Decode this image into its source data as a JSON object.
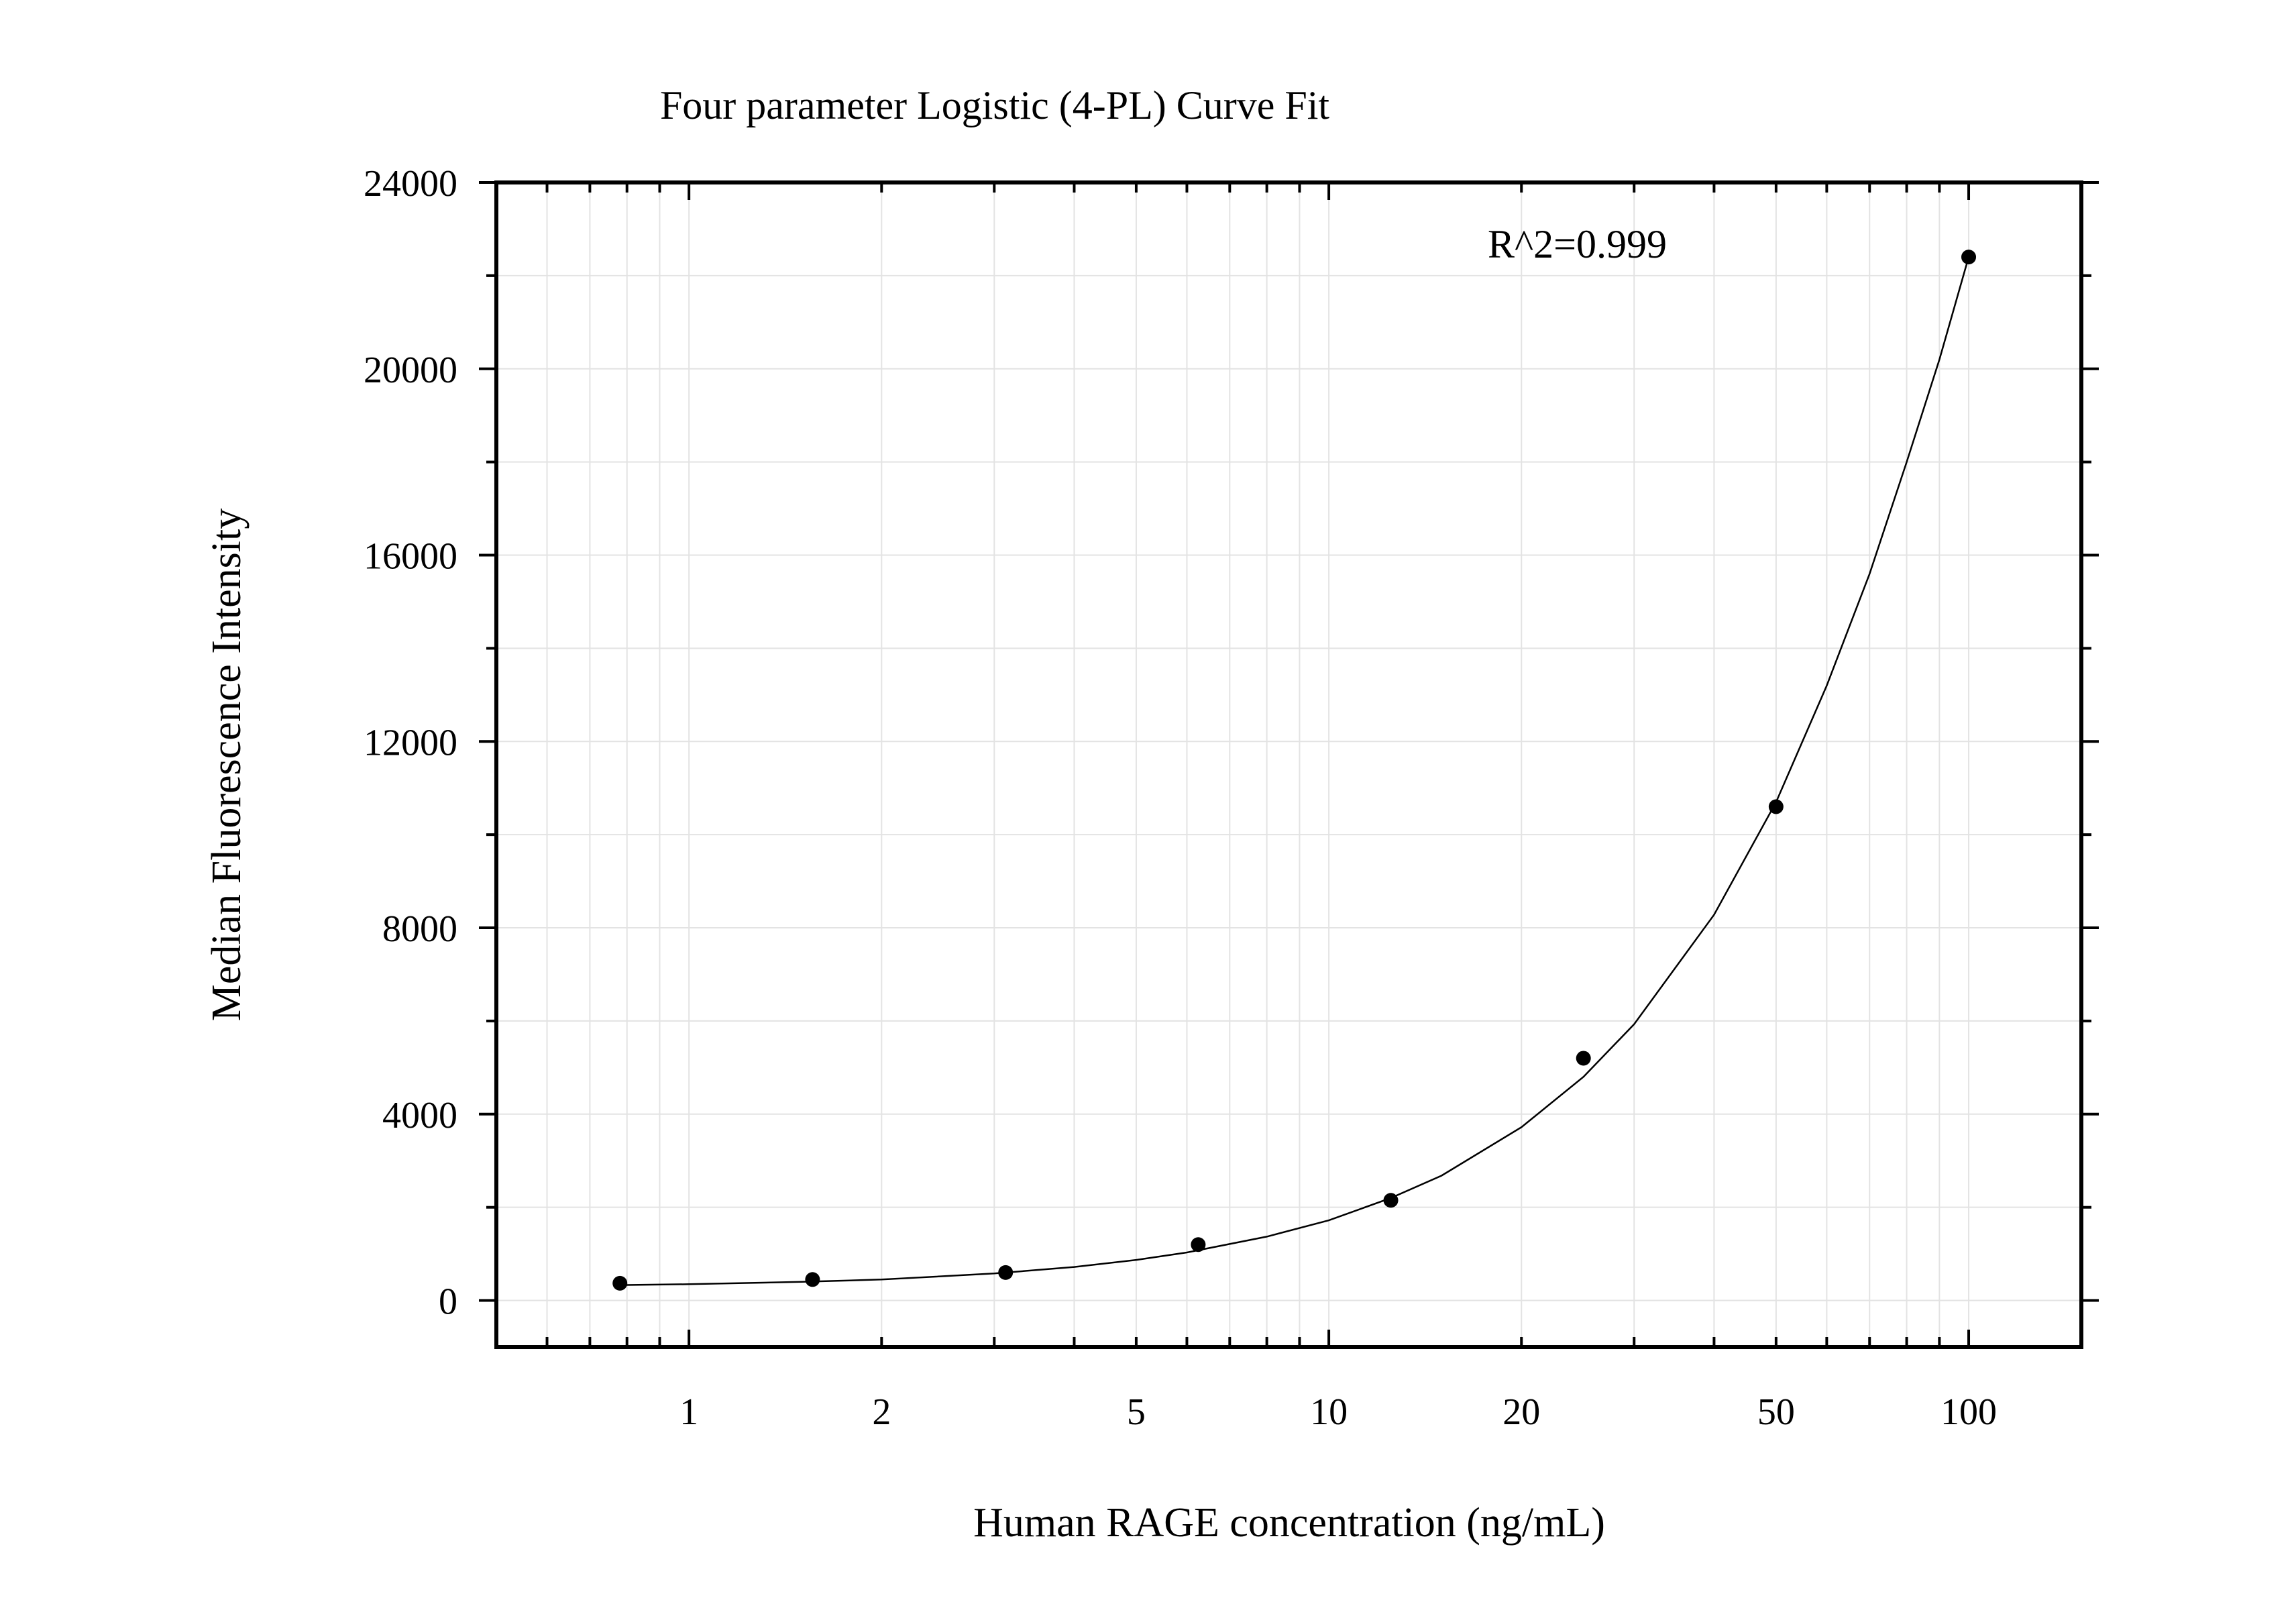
{
  "chart_data": {
    "type": "scatter",
    "title": "Four parameter Logistic (4-PL) Curve Fit",
    "xlabel": "Human RAGE concentration (ng/mL)",
    "ylabel": "Median Fluorescence Intensity",
    "x_scale": "log",
    "xlim": [
      0.5,
      150
    ],
    "ylim": [
      -1000,
      24000
    ],
    "x_ticks": [
      1,
      2,
      5,
      10,
      20,
      50,
      100
    ],
    "y_ticks": [
      0,
      4000,
      8000,
      12000,
      16000,
      20000,
      24000
    ],
    "grid": true,
    "legend": "none",
    "annotation": "R^2=0.999",
    "points": {
      "x": [
        0.78,
        1.56,
        3.125,
        6.25,
        12.5,
        25,
        50,
        100
      ],
      "y": [
        370,
        450,
        600,
        1200,
        2150,
        5200,
        10600,
        22400
      ]
    },
    "fit": {
      "model": "4-PL",
      "x": [
        0.78,
        1,
        1.5,
        2,
        3,
        4,
        5,
        6,
        8,
        10,
        12.5,
        15,
        20,
        25,
        30,
        40,
        50,
        60,
        70,
        80,
        90,
        100
      ],
      "y": [
        330,
        350,
        400,
        450,
        580,
        720,
        870,
        1030,
        1370,
        1720,
        2200,
        2680,
        3720,
        4800,
        5930,
        8280,
        10700,
        13200,
        15600,
        18000,
        20200,
        22400
      ]
    }
  }
}
